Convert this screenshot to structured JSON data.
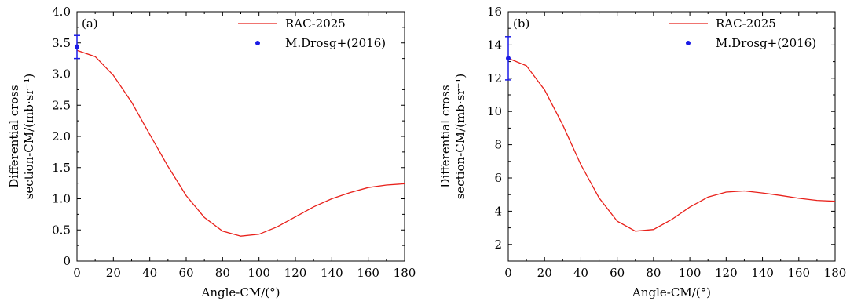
{
  "chart_data": [
    {
      "type": "line",
      "panel_label": "(a)",
      "xlabel": "Angle-CM/(°)",
      "ylabel_lines": [
        "Differential cross",
        "section-CM/(mb·sr⁻¹)"
      ],
      "xlim": [
        0,
        180
      ],
      "ylim": [
        0,
        4.0
      ],
      "xticks": [
        0,
        20,
        40,
        60,
        80,
        100,
        120,
        140,
        160,
        180
      ],
      "yticks": [
        0,
        0.5,
        1.0,
        1.5,
        2.0,
        2.5,
        3.0,
        3.5,
        4.0
      ],
      "ytick_labels": [
        "0",
        "0.5",
        "1.0",
        "1.5",
        "2.0",
        "2.5",
        "3.0",
        "3.5",
        "4.0"
      ],
      "grid": false,
      "legend_position": "top-right",
      "series": [
        {
          "name": "RAC-2025",
          "kind": "line",
          "color": "#e8201a",
          "x": [
            0,
            10,
            20,
            30,
            40,
            50,
            60,
            70,
            80,
            90,
            100,
            110,
            120,
            130,
            140,
            150,
            160,
            170,
            180
          ],
          "y": [
            3.38,
            3.28,
            2.98,
            2.55,
            2.03,
            1.52,
            1.05,
            0.7,
            0.48,
            0.4,
            0.43,
            0.55,
            0.71,
            0.87,
            1.0,
            1.1,
            1.18,
            1.22,
            1.24
          ]
        },
        {
          "name": "M.Drosg+(2016)",
          "kind": "scatter",
          "color": "#1a1ae6",
          "x": [
            0
          ],
          "y": [
            3.44
          ],
          "yerr_low": [
            3.25
          ],
          "yerr_high": [
            3.62
          ]
        }
      ]
    },
    {
      "type": "line",
      "panel_label": "(b)",
      "xlabel": "Angle-CM/(°)",
      "ylabel_lines": [
        "Differential cross",
        "section-CM/(mb·sr⁻¹)"
      ],
      "xlim": [
        0,
        180
      ],
      "ylim": [
        1,
        16
      ],
      "xticks": [
        0,
        20,
        40,
        60,
        80,
        100,
        120,
        140,
        160,
        180
      ],
      "yticks": [
        2,
        4,
        6,
        8,
        10,
        12,
        14,
        16
      ],
      "ytick_labels": [
        "2",
        "4",
        "6",
        "8",
        "10",
        "12",
        "14",
        "16"
      ],
      "grid": false,
      "legend_position": "top-right",
      "series": [
        {
          "name": "RAC-2025",
          "kind": "line",
          "color": "#e8201a",
          "x": [
            0,
            10,
            20,
            30,
            40,
            50,
            60,
            70,
            80,
            90,
            100,
            110,
            120,
            130,
            140,
            150,
            160,
            170,
            180
          ],
          "y": [
            13.2,
            12.75,
            11.3,
            9.2,
            6.8,
            4.8,
            3.4,
            2.8,
            2.9,
            3.5,
            4.25,
            4.85,
            5.15,
            5.22,
            5.1,
            4.95,
            4.78,
            4.65,
            4.6
          ]
        },
        {
          "name": "M.Drosg+(2016)",
          "kind": "scatter",
          "color": "#1a1ae6",
          "x": [
            0
          ],
          "y": [
            13.2
          ],
          "yerr_low": [
            11.9
          ],
          "yerr_high": [
            14.5
          ]
        }
      ]
    }
  ]
}
